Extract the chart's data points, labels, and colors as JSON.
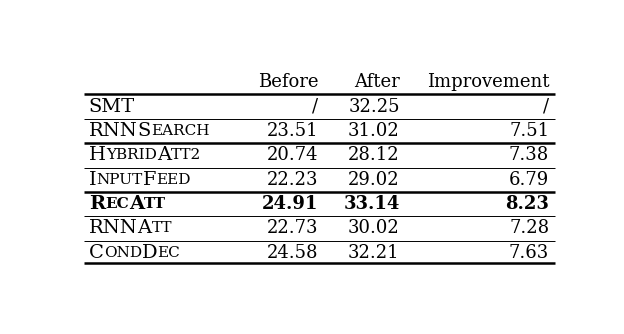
{
  "rows": [
    {
      "label": "SMT",
      "label_parts": [
        [
          "SMT",
          "large"
        ]
      ],
      "before": "/",
      "after": "32.25",
      "improvement": "/",
      "bold": false
    },
    {
      "label": "RNNSearch",
      "label_parts": [
        [
          "RNN",
          "large"
        ],
        [
          "S",
          "large"
        ],
        [
          "EARCH",
          "small"
        ]
      ],
      "before": "23.51",
      "after": "31.02",
      "improvement": "7.51",
      "bold": false
    },
    {
      "label": "HybridAtt2",
      "label_parts": [
        [
          "H",
          "large"
        ],
        [
          "YBRID",
          "small"
        ],
        [
          "A",
          "large"
        ],
        [
          "TT2",
          "small"
        ]
      ],
      "before": "20.74",
      "after": "28.12",
      "improvement": "7.38",
      "bold": false
    },
    {
      "label": "InputFeed",
      "label_parts": [
        [
          "I",
          "large"
        ],
        [
          "NPUT",
          "small"
        ],
        [
          "F",
          "large"
        ],
        [
          "EED",
          "small"
        ]
      ],
      "before": "22.23",
      "after": "29.02",
      "improvement": "6.79",
      "bold": false
    },
    {
      "label": "RecAtt",
      "label_parts": [
        [
          "R",
          "large"
        ],
        [
          "EC",
          "small"
        ],
        [
          "A",
          "large"
        ],
        [
          "TT",
          "small"
        ]
      ],
      "before": "24.91",
      "after": "33.14",
      "improvement": "8.23",
      "bold": true
    },
    {
      "label": "RNNAtt",
      "label_parts": [
        [
          "RNN",
          "large"
        ],
        [
          "A",
          "large"
        ],
        [
          "TT",
          "small"
        ]
      ],
      "before": "22.73",
      "after": "30.02",
      "improvement": "7.28",
      "bold": false
    },
    {
      "label": "CondDec",
      "label_parts": [
        [
          "C",
          "large"
        ],
        [
          "OND",
          "small"
        ],
        [
          "D",
          "large"
        ],
        [
          "EC",
          "small"
        ]
      ],
      "before": "24.58",
      "after": "32.21",
      "improvement": "7.63",
      "bold": false
    }
  ],
  "header": [
    "Before",
    "After",
    "Improvement"
  ],
  "thick_lines_after_rows": [
    -1,
    1,
    3,
    6
  ],
  "thin_lines_after_rows": [
    0,
    2,
    4,
    5
  ],
  "bg_color": "#ffffff",
  "text_color": "#000000",
  "font_size_large": 14,
  "font_size_small": 11,
  "font_size_header": 13,
  "font_size_data": 13
}
